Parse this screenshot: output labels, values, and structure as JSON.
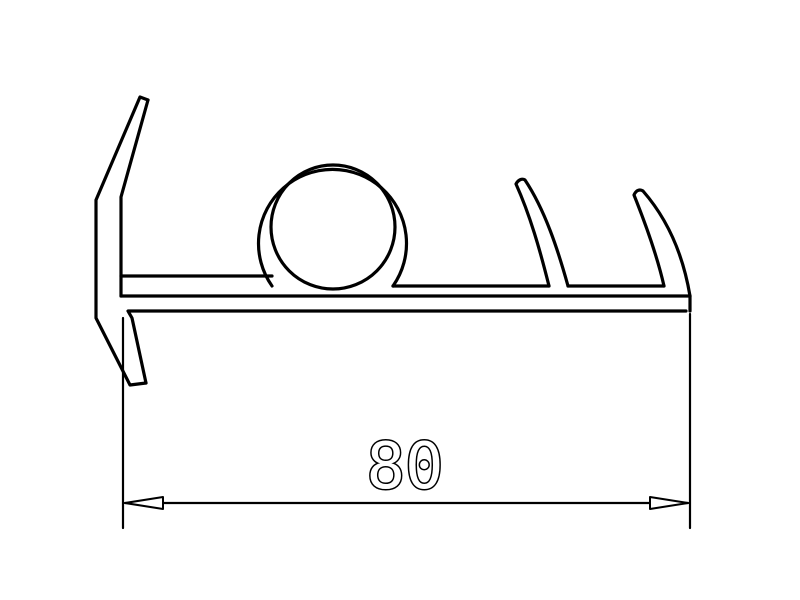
{
  "diagram": {
    "dimension": {
      "value": "80"
    },
    "colors": {
      "line": "#000000",
      "background": "#ffffff"
    }
  }
}
